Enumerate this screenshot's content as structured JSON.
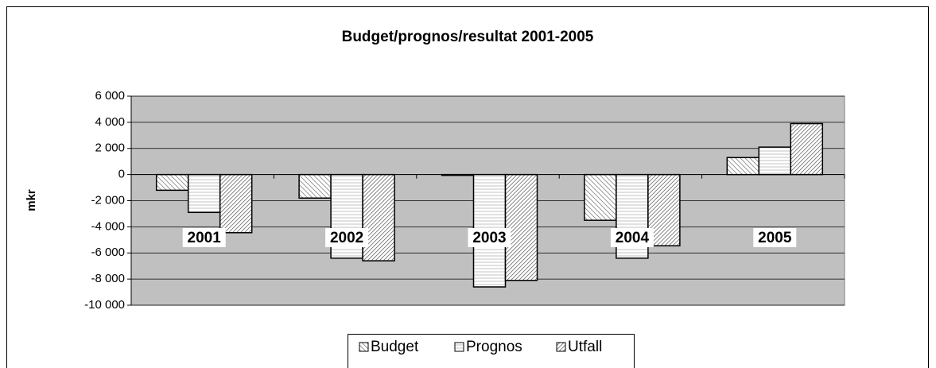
{
  "chart_data": {
    "type": "bar",
    "title": "Budget/prognos/resultat 2001-2005",
    "y_label": "mkr",
    "categories": [
      "2001",
      "2002",
      "2003",
      "2004",
      "2005"
    ],
    "series": [
      {
        "name": "Budget",
        "color": "#ffffff",
        "pattern": "diagonal-down",
        "values": [
          -1200,
          -1800,
          -50,
          -3500,
          1300
        ]
      },
      {
        "name": "Prognos",
        "color": "#ffffff",
        "pattern": "horizontal",
        "values": [
          -2900,
          -6400,
          -8600,
          -6400,
          2100
        ]
      },
      {
        "name": "Utfall",
        "color": "#ffffff",
        "pattern": "diagonal-up",
        "values": [
          -4450,
          -6600,
          -8100,
          -5450,
          3900
        ]
      }
    ],
    "ylim": [
      -10000,
      6000
    ],
    "yticks": [
      {
        "value": -10000,
        "label": "-10 000"
      },
      {
        "value": -8000,
        "label": "-8 000"
      },
      {
        "value": -6000,
        "label": "-6 000"
      },
      {
        "value": -4000,
        "label": "-4 000"
      },
      {
        "value": -2000,
        "label": "-2 000"
      },
      0,
      {
        "value": 2000,
        "label": "2 000"
      },
      {
        "value": 4000,
        "label": "4 000"
      },
      {
        "value": 6000,
        "label": "6 000"
      }
    ],
    "grid": true,
    "legend": "bottom"
  }
}
